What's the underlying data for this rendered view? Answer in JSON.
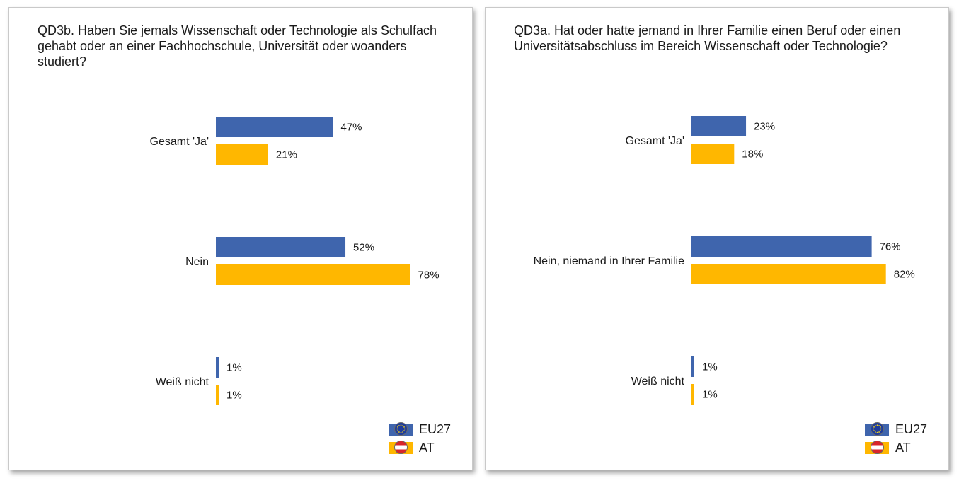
{
  "colors": {
    "eu": "#3f65ad",
    "at": "#ffb700",
    "eu_flag": "#1f3c9a",
    "eu_star": "#f3d31a",
    "at_red": "#d8262b",
    "at_white": "#ffffff"
  },
  "legend": {
    "eu_label": "EU27",
    "at_label": "AT",
    "eu_icon": "eu-flag-icon",
    "at_icon": "austria-flag-icon"
  },
  "chart_data": [
    {
      "type": "bar",
      "orientation": "horizontal",
      "title": "QD3b. Haben Sie jemals Wissenschaft oder Technologie als Schulfach gehabt oder an einer Fachhochschule, Universität oder woanders studiert?",
      "categories": [
        "Gesamt 'Ja'",
        "Nein",
        "Weiß nicht"
      ],
      "series": [
        {
          "name": "EU27",
          "values": [
            47,
            52,
            1
          ],
          "labels": [
            "47%",
            "52%",
            "1%"
          ]
        },
        {
          "name": "AT",
          "values": [
            21,
            78,
            1
          ],
          "labels": [
            "21%",
            "78%",
            "1%"
          ]
        }
      ],
      "unit": "%",
      "xlim": [
        0,
        100
      ],
      "grid": false,
      "legend_position": "bottom-right"
    },
    {
      "type": "bar",
      "orientation": "horizontal",
      "title": "QD3a. Hat oder hatte jemand in Ihrer Familie einen Beruf oder einen Universitätsabschluss im Bereich Wissenschaft oder Technologie?",
      "categories": [
        "Gesamt 'Ja'",
        "Nein, niemand in Ihrer Familie",
        "Weiß nicht"
      ],
      "series": [
        {
          "name": "EU27",
          "values": [
            23,
            76,
            1
          ],
          "labels": [
            "23%",
            "76%",
            "1%"
          ]
        },
        {
          "name": "AT",
          "values": [
            18,
            82,
            1
          ],
          "labels": [
            "18%",
            "82%",
            "1%"
          ]
        }
      ],
      "unit": "%",
      "xlim": [
        0,
        100
      ],
      "grid": false,
      "legend_position": "bottom-right"
    }
  ]
}
